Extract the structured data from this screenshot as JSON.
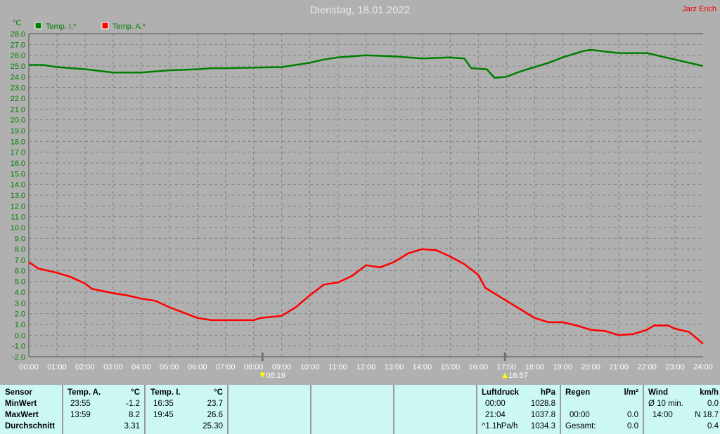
{
  "title": "Dienstag, 18.01.2022",
  "author": "Jarz Erich",
  "chart_data": {
    "type": "line",
    "ylabel": "°C",
    "ylim": [
      -2,
      28
    ],
    "yticks": [
      "28.0",
      "27.0",
      "26.0",
      "25.0",
      "24.0",
      "23.0",
      "22.0",
      "21.0",
      "20.0",
      "19.0",
      "18.0",
      "17.0",
      "16.0",
      "15.0",
      "14.0",
      "13.0",
      "12.0",
      "11.0",
      "10.0",
      "9.0",
      "8.0",
      "7.0",
      "6.0",
      "5.0",
      "4.0",
      "3.0",
      "2.0",
      "1.0",
      "0.0",
      "-1.0",
      "-2.0"
    ],
    "xticks": [
      "00:00",
      "01:00",
      "02:00",
      "03:00",
      "04:00",
      "05:00",
      "06:00",
      "07:00",
      "08:00",
      "09:00",
      "10:00",
      "11:00",
      "12:00",
      "13:00",
      "14:00",
      "15:00",
      "16:00",
      "17:00",
      "18:00",
      "19:00",
      "20:00",
      "21:00",
      "22:00",
      "23:00",
      "24:00"
    ],
    "xlim_hours": [
      0,
      24
    ],
    "grid": true,
    "legend": "top-left",
    "markers": [
      {
        "label": "08:19",
        "hour": 8.317,
        "type": "sunrise"
      },
      {
        "label": "16:57",
        "hour": 16.95,
        "type": "sunset"
      }
    ],
    "series": [
      {
        "name": "Temp. I.*",
        "color": "#007f00",
        "x": [
          0,
          0.5,
          1,
          2,
          3,
          4,
          5,
          6,
          6.5,
          7,
          8,
          9,
          10,
          10.5,
          11,
          12,
          13,
          14,
          15,
          15.5,
          15.75,
          16.3,
          16.58,
          17,
          17.5,
          18,
          18.5,
          19,
          19.75,
          20,
          21,
          22,
          23,
          24
        ],
        "y": [
          25.1,
          25.1,
          24.9,
          24.7,
          24.4,
          24.4,
          24.6,
          24.7,
          24.8,
          24.8,
          24.85,
          24.9,
          25.3,
          25.6,
          25.8,
          26.0,
          25.9,
          25.7,
          25.8,
          25.7,
          24.8,
          24.7,
          23.9,
          24.0,
          24.5,
          24.9,
          25.3,
          25.8,
          26.4,
          26.5,
          26.2,
          26.2,
          25.6,
          25.0
        ]
      },
      {
        "name": "Temp. A.*",
        "color": "#ff0000",
        "x": [
          0,
          0.33,
          1,
          1.5,
          2,
          2.25,
          3,
          3.5,
          4,
          4.5,
          5,
          5.5,
          6,
          6.5,
          7,
          8,
          8.25,
          9,
          9.5,
          10,
          10.5,
          11,
          11.5,
          12,
          12.5,
          13,
          13.5,
          14,
          14.5,
          15,
          15.5,
          16,
          16.25,
          16.5,
          17,
          17.5,
          18,
          18.5,
          19,
          19.5,
          20,
          20.5,
          21,
          21.5,
          22,
          22.25,
          22.75,
          23,
          23.5,
          24
        ],
        "y": [
          6.8,
          6.2,
          5.8,
          5.4,
          4.8,
          4.3,
          3.9,
          3.7,
          3.4,
          3.2,
          2.6,
          2.1,
          1.6,
          1.4,
          1.4,
          1.4,
          1.6,
          1.8,
          2.6,
          3.7,
          4.7,
          4.9,
          5.5,
          6.5,
          6.3,
          6.8,
          7.6,
          8.0,
          7.9,
          7.3,
          6.6,
          5.6,
          4.4,
          4.0,
          3.2,
          2.4,
          1.6,
          1.2,
          1.2,
          0.9,
          0.5,
          0.4,
          0.0,
          0.1,
          0.5,
          0.9,
          0.9,
          0.6,
          0.3,
          -0.8
        ]
      }
    ]
  },
  "table": {
    "c1": {
      "h": "Sensor",
      "r1": "MinWert",
      "r2": "MaxWert",
      "r3": "Durchschnitt"
    },
    "c2": {
      "h": "Temp. A.",
      "u": "°C",
      "t1": "23:55",
      "v1": "-1.2",
      "t2": "13:59",
      "v2": "8.2",
      "v3": "3.31"
    },
    "c3": {
      "h": "Temp. I.",
      "u": "°C",
      "t1": "16:35",
      "v1": "23.7",
      "t2": "19:45",
      "v2": "26.6",
      "v3": "25.30"
    },
    "c4": {
      "h": "Luftdruck",
      "u": "hPa",
      "t1": "00:00",
      "v1": "1028.8",
      "t2": "21:04",
      "v2": "1037.8",
      "t3": "^1.1hPa/h",
      "v3": "1034.3"
    },
    "c5": {
      "h": "Regen",
      "u": "l/m²",
      "t2": "00:00",
      "v2": "0.0",
      "t3": "Gesamt:",
      "v3": "0.0"
    },
    "c6": {
      "h": "Wind",
      "u": "km/h",
      "t1": "Ø 10 min.",
      "v1": "0.0",
      "t2": "14:00",
      "v2": "N 18.7",
      "v3": "0.4"
    }
  }
}
